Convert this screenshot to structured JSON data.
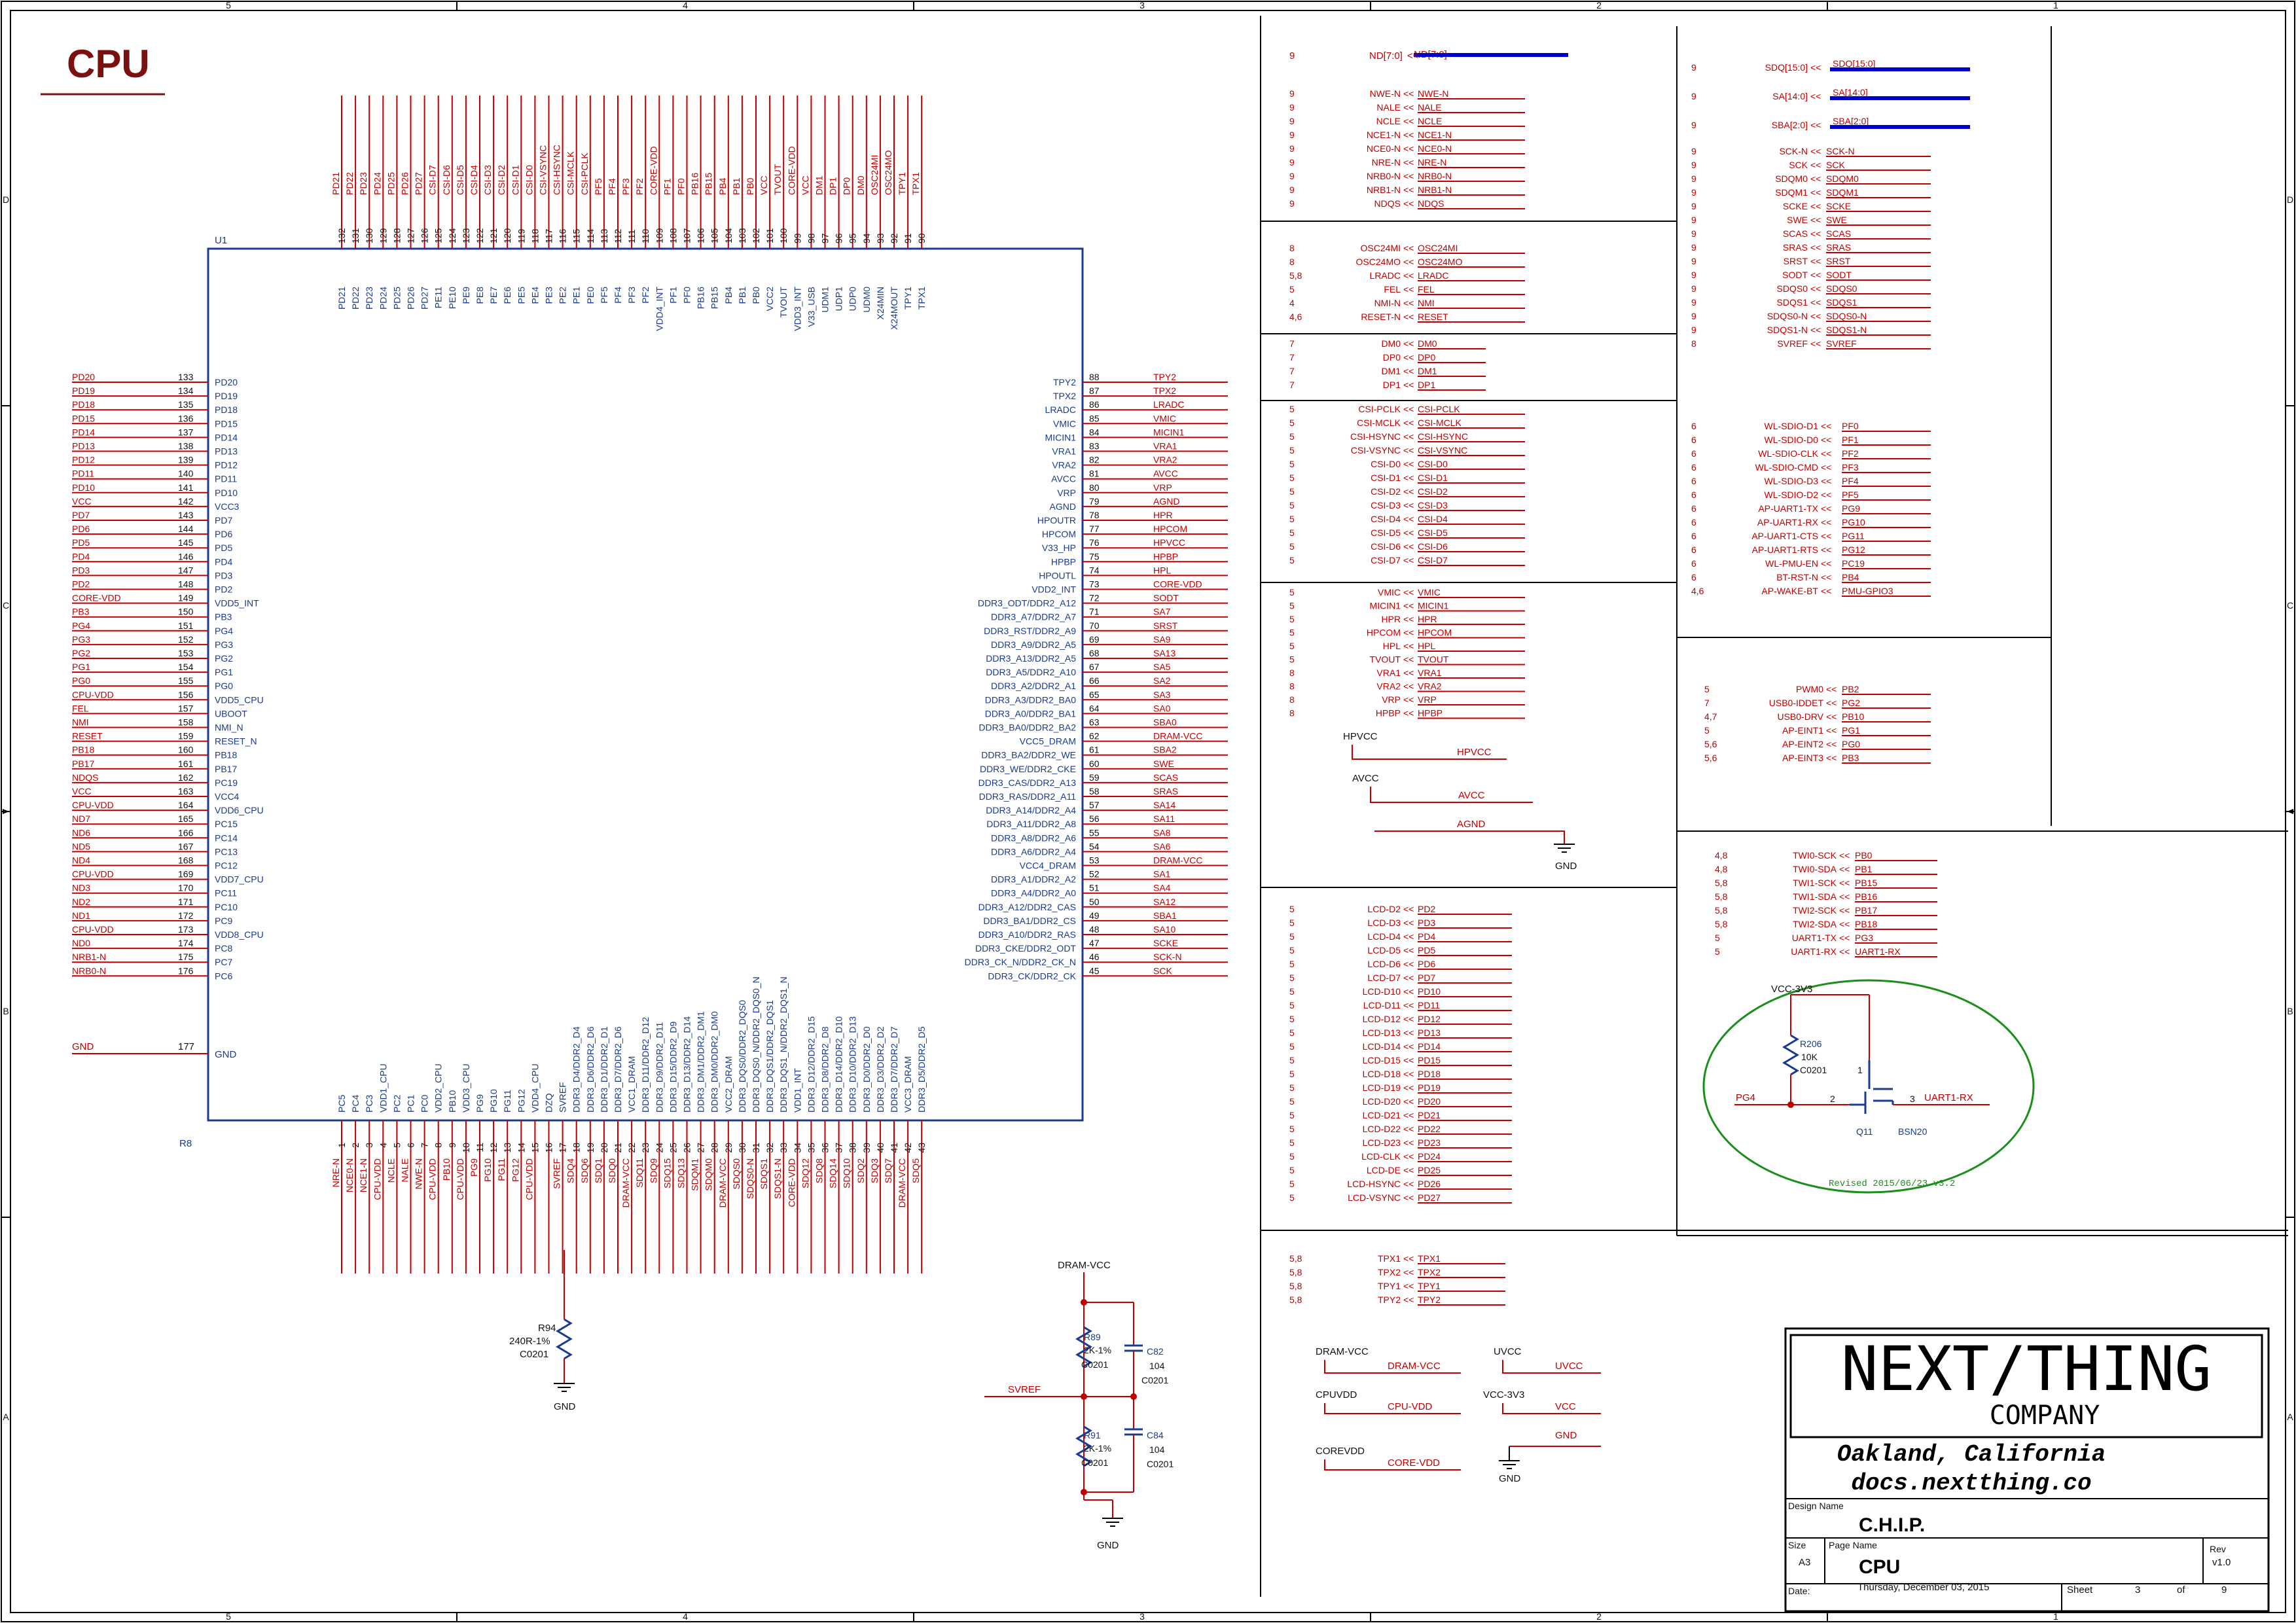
{
  "page_title": "CPU",
  "chip": {
    "ref": "U1",
    "left_labels": [
      "PD20",
      "PD19",
      "PD18",
      "PD15",
      "PD14",
      "PD13",
      "PD12",
      "PD11",
      "PD10",
      "VCC3",
      "PD7",
      "PD6",
      "PD5",
      "PD4",
      "PD3",
      "PD2",
      "VDD5_INT",
      "PB3",
      "PG4",
      "PG3",
      "PG2",
      "PG1",
      "PG0",
      "VDD5_CPU",
      "UBOOT",
      "NMI_N",
      "RESET_N",
      "PB18",
      "PB17",
      "PC19",
      "VCC4",
      "VDD6_CPU",
      "PC15",
      "PC14",
      "PC13",
      "PC12",
      "VDD7_CPU",
      "PC11",
      "PC10",
      "PC9",
      "VDD8_CPU",
      "PC8",
      "PC7",
      "PC6"
    ],
    "left_pins": [
      "133",
      "134",
      "135",
      "136",
      "137",
      "138",
      "139",
      "140",
      "141",
      "142",
      "143",
      "144",
      "145",
      "146",
      "147",
      "148",
      "149",
      "150",
      "151",
      "152",
      "153",
      "154",
      "155",
      "156",
      "157",
      "158",
      "159",
      "160",
      "161",
      "162",
      "163",
      "164",
      "165",
      "166",
      "167",
      "168",
      "169",
      "170",
      "171",
      "172",
      "173",
      "174",
      "175",
      "176"
    ],
    "left_nets": [
      "PD20",
      "PD19",
      "PD18",
      "PD15",
      "PD14",
      "PD13",
      "PD12",
      "PD11",
      "PD10",
      "VCC",
      "PD7",
      "PD6",
      "PD5",
      "PD4",
      "PD3",
      "PD2",
      "CORE-VDD",
      "PB3",
      "PG4",
      "PG3",
      "PG2",
      "PG1",
      "PG0",
      "CPU-VDD",
      "FEL",
      "NMI",
      "RESET",
      "PB18",
      "PB17",
      "NDQS",
      "VCC",
      "CPU-VDD",
      "ND7",
      "ND6",
      "ND5",
      "ND4",
      "CPU-VDD",
      "ND3",
      "ND2",
      "ND1",
      "CPU-VDD",
      "ND0",
      "NRB1-N",
      "NRB0-N"
    ],
    "gnd_label": "GND",
    "gnd_pin": "177",
    "gnd_net": "GND",
    "right_labels": [
      "TPY2",
      "TPX2",
      "LRADC",
      "VMIC",
      "MICIN1",
      "VRA1",
      "VRA2",
      "AVCC",
      "VRP",
      "AGND",
      "HPOUTR",
      "HPCOM",
      "V33_HP",
      "HPBP",
      "HPOUTL",
      "VDD2_INT",
      "DDR3_ODT/DDR2_A12",
      "DDR3_A7/DDR2_A7",
      "DDR3_RST/DDR2_A9",
      "DDR3_A9/DDR2_A5",
      "DDR3_A13/DDR2_A5",
      "DDR3_A5/DDR2_A10",
      "DDR3_A2/DDR2_A1",
      "DDR3_A3/DDR2_BA0",
      "DDR3_A0/DDR2_BA1",
      "DDR3_BA0/DDR2_BA2",
      "VCC5_DRAM",
      "DDR3_BA2/DDR2_WE",
      "DDR3_WE/DDR2_CKE",
      "DDR3_CAS/DDR2_A13",
      "DDR3_RAS/DDR2_A11",
      "DDR3_A14/DDR2_A4",
      "DDR3_A11/DDR2_A8",
      "DDR3_A8/DDR2_A6",
      "DDR3_A6/DDR2_A4",
      "VCC4_DRAM",
      "DDR3_A1/DDR2_A2",
      "DDR3_A4/DDR2_A0",
      "DDR3_A12/DDR2_CAS",
      "DDR3_BA1/DDR2_CS",
      "DDR3_A10/DDR2_RAS",
      "DDR3_CKE/DDR2_ODT",
      "DDR3_CK_N/DDR2_CK_N",
      "DDR3_CK/DDR2_CK"
    ],
    "right_pins": [
      "88",
      "87",
      "86",
      "85",
      "84",
      "83",
      "82",
      "81",
      "80",
      "79",
      "78",
      "77",
      "76",
      "75",
      "74",
      "73",
      "72",
      "71",
      "70",
      "69",
      "68",
      "67",
      "66",
      "65",
      "64",
      "63",
      "62",
      "61",
      "60",
      "59",
      "58",
      "57",
      "56",
      "55",
      "54",
      "53",
      "52",
      "51",
      "50",
      "49",
      "48",
      "47",
      "46",
      "45"
    ],
    "right_nets": [
      "TPY2",
      "TPX2",
      "LRADC",
      "VMIC",
      "MICIN1",
      "VRA1",
      "VRA2",
      "AVCC",
      "VRP",
      "AGND",
      "HPR",
      "HPCOM",
      "HPVCC",
      "HPBP",
      "HPL",
      "CORE-VDD",
      "SODT",
      "SA7",
      "SRST",
      "SA9",
      "SA13",
      "SA5",
      "SA2",
      "SA3",
      "SA0",
      "SBA0",
      "DRAM-VCC",
      "SBA2",
      "SWE",
      "SCAS",
      "SRAS",
      "SA14",
      "SA11",
      "SA8",
      "SA6",
      "DRAM-VCC",
      "SA1",
      "SA4",
      "SA12",
      "SBA1",
      "SA10",
      "SCKE",
      "SCK-N",
      "SCK"
    ],
    "top_labels": [
      "PD21",
      "PD22",
      "PD23",
      "PD24",
      "PD25",
      "PD26",
      "PD27",
      "PE11",
      "PE10",
      "PE9",
      "PE8",
      "PE7",
      "PE6",
      "PE5",
      "PE4",
      "PE3",
      "PE2",
      "PE1",
      "PE0",
      "PF5",
      "PF4",
      "PF3",
      "PF2",
      "VDD4_INT",
      "PF1",
      "PF0",
      "PB16",
      "PB15",
      "PB4",
      "PB1",
      "PB0",
      "VCC2",
      "TVOUT",
      "VDD3_INT",
      "V33_USB",
      "UDM1",
      "UDP1",
      "UDP0",
      "UDM0",
      "X24MIN",
      "X24MOUT",
      "TPY1",
      "TPX1"
    ],
    "top_pins": [
      "132",
      "131",
      "130",
      "129",
      "128",
      "127",
      "126",
      "125",
      "124",
      "123",
      "122",
      "121",
      "120",
      "119",
      "118",
      "117",
      "116",
      "115",
      "114",
      "113",
      "112",
      "111",
      "110",
      "109",
      "108",
      "107",
      "106",
      "105",
      "104",
      "103",
      "102",
      "101",
      "100",
      "99",
      "98",
      "97",
      "96",
      "95",
      "94",
      "93",
      "92",
      "91",
      "90",
      "89"
    ],
    "top_nets": [
      "PD21",
      "PD22",
      "PD23",
      "PD24",
      "PD25",
      "PD26",
      "PD27",
      "CSI-D7",
      "CSI-D6",
      "CSI-D5",
      "CSI-D4",
      "CSI-D3",
      "CSI-D2",
      "CSI-D1",
      "CSI-D0",
      "CSI-VSYNC",
      "CSI-HSYNC",
      "CSI-MCLK",
      "CSI-PCLK",
      "PF5",
      "PF4",
      "PF3",
      "PF2",
      "CORE-VDD",
      "PF1",
      "PF0",
      "PB16",
      "PB15",
      "PB4",
      "PB1",
      "PB0",
      "VCC",
      "TVOUT",
      "CORE-VDD",
      "VCC",
      "DM1",
      "DP1",
      "DP0",
      "DM0",
      "OSC24MI",
      "OSC24MO",
      "TPY1",
      "TPX1"
    ],
    "bottom_labels": [
      "PC5",
      "PC4",
      "PC3",
      "VDD1_CPU",
      "PC2",
      "PC1",
      "PC0",
      "VDD2_CPU",
      "PB10",
      "VDD3_CPU",
      "PG9",
      "PG10",
      "PG11",
      "PG12",
      "VDD4_CPU",
      "DZQ",
      "SVREF",
      "DDR3_D4/DDR2_D4",
      "DDR3_D6/DDR2_D6",
      "DDR3_D1/DDR2_D1",
      "DDR3_D7/DDR2_D6",
      "VCC1_DRAM",
      "DDR3_D11/DDR2_D12",
      "DDR3_D9/DDR2_D11",
      "DDR3_D15/DDR2_D9",
      "DDR3_D13/DDR2_D14",
      "DDR3_DM1/DDR2_DM1",
      "DDR3_DM0/DDR2_DM0",
      "VCC2_DRAM",
      "DDR3_DQS0/DDR2_DQS0",
      "DDR3_DQS0_N/DDR2_DQS0_N",
      "DDR3_DQS1/DDR2_DQS1",
      "DDR3_DQS1_N/DDR2_DQS1_N",
      "VDD1_INT",
      "DDR3_D12/DDR2_D15",
      "DDR3_D8/DDR2_D8",
      "DDR3_D14/DDR2_D10",
      "DDR3_D10/DDR2_D13",
      "DDR3_D0/DDR2_D0",
      "DDR3_D3/DDR2_D2",
      "DDR3_D7/DDR2_D7",
      "VCC3_DRAM",
      "DDR3_D5/DDR2_D5"
    ],
    "bottom_pins": [
      "1",
      "2",
      "3",
      "4",
      "5",
      "6",
      "7",
      "8",
      "9",
      "10",
      "11",
      "12",
      "13",
      "14",
      "15",
      "16",
      "17",
      "18",
      "19",
      "20",
      "21",
      "22",
      "23",
      "24",
      "25",
      "26",
      "27",
      "28",
      "29",
      "30",
      "31",
      "32",
      "33",
      "34",
      "35",
      "36",
      "37",
      "38",
      "39",
      "40",
      "41",
      "42",
      "43",
      "44"
    ],
    "bottom_nets": [
      "NRE-N",
      "NCE0-N",
      "NCE1-N",
      "CPU-VDD",
      "NCLE",
      "NALE",
      "NWE-N",
      "CPU-VDD",
      "PB10",
      "CPU-VDD",
      "PG9",
      "PG10",
      "PG11",
      "PG12",
      "CPU-VDD",
      "",
      "SVREF",
      "SDQ4",
      "SDQ6",
      "SDQ1",
      "SDQ0",
      "DRAM-VCC",
      "SDQ11",
      "SDQ9",
      "SDQ15",
      "SDQ13",
      "SDQM1",
      "SDQM0",
      "DRAM-VCC",
      "SDQS0",
      "SDQS0-N",
      "SDQS1",
      "SDQS1-N",
      "CORE-VDD",
      "SDQ12",
      "SDQ8",
      "SDQ14",
      "SDQ10",
      "SDQ2",
      "SDQ3",
      "SDQ7",
      "DRAM-VCC",
      "SDQ5"
    ],
    "r8_label": "R8"
  },
  "r94": {
    "ref": "R94",
    "value": "240R-1%",
    "pkg": "C0201",
    "gnd": "GND"
  },
  "svref_circuit": {
    "title": "DRAM-VCC",
    "net": "SVREF",
    "r89": {
      "ref": "R89",
      "value": "2K-1%",
      "pkg": "C0201"
    },
    "r91": {
      "ref": "R91",
      "value": "2K-1%",
      "pkg": "C0201"
    },
    "c82": {
      "ref": "C82",
      "value": "104",
      "pkg": "C0201"
    },
    "c84": {
      "ref": "C84",
      "value": "104",
      "pkg": "C0201"
    },
    "gnd": "GND"
  },
  "nand": {
    "bus": {
      "sheet": "9",
      "pin": "ND[7:0]",
      "net": "ND[7:0]"
    },
    "rows": [
      [
        "9",
        "NWE-N",
        "NWE-N"
      ],
      [
        "9",
        "NALE",
        "NALE"
      ],
      [
        "9",
        "NCLE",
        "NCLE"
      ],
      [
        "9",
        "NCE1-N",
        "NCE1-N"
      ],
      [
        "9",
        "NCE0-N",
        "NCE0-N"
      ],
      [
        "9",
        "NRE-N",
        "NRE-N"
      ],
      [
        "9",
        "NRB0-N",
        "NRB0-N"
      ],
      [
        "9",
        "NRB1-N",
        "NRB1-N"
      ],
      [
        "9",
        "NDQS",
        "NDQS"
      ]
    ]
  },
  "osc": {
    "rows": [
      [
        "8",
        "OSC24MI",
        "OSC24MI"
      ],
      [
        "8",
        "OSC24MO",
        "OSC24MO"
      ],
      [
        "5,8",
        "LRADC",
        "LRADC"
      ],
      [
        "5",
        "FEL",
        "FEL"
      ],
      [
        "4",
        "NMI-N",
        "NMI"
      ],
      [
        "4,6",
        "RESET-N",
        "RESET"
      ]
    ]
  },
  "usb": {
    "rows": [
      [
        "7",
        "DM0",
        "DM0"
      ],
      [
        "7",
        "DP0",
        "DP0"
      ],
      [
        "7",
        "DM1",
        "DM1"
      ],
      [
        "7",
        "DP1",
        "DP1"
      ]
    ]
  },
  "csi": {
    "rows": [
      [
        "5",
        "CSI-PCLK",
        "CSI-PCLK"
      ],
      [
        "5",
        "CSI-MCLK",
        "CSI-MCLK"
      ],
      [
        "5",
        "CSI-HSYNC",
        "CSI-HSYNC"
      ],
      [
        "5",
        "CSI-VSYNC",
        "CSI-VSYNC"
      ],
      [
        "5",
        "CSI-D0",
        "CSI-D0"
      ],
      [
        "5",
        "CSI-D1",
        "CSI-D1"
      ],
      [
        "5",
        "CSI-D2",
        "CSI-D2"
      ],
      [
        "5",
        "CSI-D3",
        "CSI-D3"
      ],
      [
        "5",
        "CSI-D4",
        "CSI-D4"
      ],
      [
        "5",
        "CSI-D5",
        "CSI-D5"
      ],
      [
        "5",
        "CSI-D6",
        "CSI-D6"
      ],
      [
        "5",
        "CSI-D7",
        "CSI-D7"
      ]
    ]
  },
  "audio": {
    "rows": [
      [
        "5",
        "VMIC",
        "VMIC"
      ],
      [
        "5",
        "MICIN1",
        "MICIN1"
      ],
      [
        "5",
        "HPR",
        "HPR"
      ],
      [
        "5",
        "HPCOM",
        "HPCOM"
      ],
      [
        "5",
        "HPL",
        "HPL"
      ],
      [
        "5",
        "TVOUT",
        "TVOUT"
      ],
      [
        "8",
        "VRA1",
        "VRA1"
      ],
      [
        "8",
        "VRA2",
        "VRA2"
      ],
      [
        "8",
        "VRP",
        "VRP"
      ],
      [
        "8",
        "HPBP",
        "HPBP"
      ]
    ],
    "hpvcc_label": "HPVCC",
    "hpvcc_net": "HPVCC",
    "avcc_label": "AVCC",
    "avcc_net": "AVCC",
    "agnd_net": "AGND",
    "gnd": "GND"
  },
  "lcd": {
    "rows": [
      [
        "5",
        "LCD-D2",
        "PD2"
      ],
      [
        "5",
        "LCD-D3",
        "PD3"
      ],
      [
        "5",
        "LCD-D4",
        "PD4"
      ],
      [
        "5",
        "LCD-D5",
        "PD5"
      ],
      [
        "5",
        "LCD-D6",
        "PD6"
      ],
      [
        "5",
        "LCD-D7",
        "PD7"
      ],
      [
        "5",
        "LCD-D10",
        "PD10"
      ],
      [
        "5",
        "LCD-D11",
        "PD11"
      ],
      [
        "5",
        "LCD-D12",
        "PD12"
      ],
      [
        "5",
        "LCD-D13",
        "PD13"
      ],
      [
        "5",
        "LCD-D14",
        "PD14"
      ],
      [
        "5",
        "LCD-D15",
        "PD15"
      ],
      [
        "5",
        "LCD-D18",
        "PD18"
      ],
      [
        "5",
        "LCD-D19",
        "PD19"
      ],
      [
        "5",
        "LCD-D20",
        "PD20"
      ],
      [
        "5",
        "LCD-D21",
        "PD21"
      ],
      [
        "5",
        "LCD-D22",
        "PD22"
      ],
      [
        "5",
        "LCD-D23",
        "PD23"
      ],
      [
        "5",
        "LCD-CLK",
        "PD24"
      ],
      [
        "5",
        "LCD-DE",
        "PD25"
      ],
      [
        "5",
        "LCD-HSYNC",
        "PD26"
      ],
      [
        "5",
        "LCD-VSYNC",
        "PD27"
      ]
    ]
  },
  "touch": {
    "rows": [
      [
        "5,8",
        "TPX1",
        "TPX1"
      ],
      [
        "5,8",
        "TPX2",
        "TPX2"
      ],
      [
        "5,8",
        "TPY1",
        "TPY1"
      ],
      [
        "5,8",
        "TPY2",
        "TPY2"
      ]
    ]
  },
  "power": {
    "dram_label": "DRAM-VCC",
    "dram_net": "DRAM-VCC",
    "cpu_label": "CPUVDD",
    "cpu_net": "CPU-VDD",
    "core_label": "COREVDD",
    "core_net": "CORE-VDD",
    "uvcc_label": "UVCC",
    "uvcc_net": "UVCC",
    "vcc_label": "VCC-3V3",
    "vcc_net": "VCC",
    "gnd_net": "GND",
    "gnd": "GND"
  },
  "sdram": {
    "buses": [
      [
        "9",
        "SDQ[15:0]",
        "SDQ[15:0]"
      ],
      [
        "9",
        "SA[14:0]",
        "SA[14:0]"
      ],
      [
        "9",
        "SBA[2:0]",
        "SBA[2:0]"
      ]
    ],
    "rows": [
      [
        "9",
        "SCK-N",
        "SCK-N"
      ],
      [
        "9",
        "SCK",
        "SCK"
      ],
      [
        "9",
        "SDQM0",
        "SDQM0"
      ],
      [
        "9",
        "SDQM1",
        "SDQM1"
      ],
      [
        "9",
        "SCKE",
        "SCKE"
      ],
      [
        "9",
        "SWE",
        "SWE"
      ],
      [
        "9",
        "SCAS",
        "SCAS"
      ],
      [
        "9",
        "SRAS",
        "SRAS"
      ],
      [
        "9",
        "SRST",
        "SRST"
      ],
      [
        "9",
        "SODT",
        "SODT"
      ],
      [
        "9",
        "SDQS0",
        "SDQS0"
      ],
      [
        "9",
        "SDQS1",
        "SDQS1"
      ],
      [
        "9",
        "SDQS0-N",
        "SDQS0-N"
      ],
      [
        "9",
        "SDQS1-N",
        "SDQS1-N"
      ],
      [
        "8",
        "SVREF",
        "SVREF"
      ]
    ]
  },
  "wifi": {
    "rows": [
      [
        "6",
        "WL-SDIO-D1",
        "PF0"
      ],
      [
        "6",
        "WL-SDIO-D0",
        "PF1"
      ],
      [
        "6",
        "WL-SDIO-CLK",
        "PF2"
      ],
      [
        "6",
        "WL-SDIO-CMD",
        "PF3"
      ],
      [
        "6",
        "WL-SDIO-D3",
        "PF4"
      ],
      [
        "6",
        "WL-SDIO-D2",
        "PF5"
      ],
      [
        "6",
        "AP-UART1-TX",
        "PG9"
      ],
      [
        "6",
        "AP-UART1-RX",
        "PG10"
      ],
      [
        "6",
        "AP-UART1-CTS",
        "PG11"
      ],
      [
        "6",
        "AP-UART1-RTS",
        "PG12"
      ],
      [
        "6",
        "WL-PMU-EN",
        "PC19"
      ],
      [
        "6",
        "BT-RST-N",
        "PB4"
      ],
      [
        "4,6",
        "AP-WAKE-BT",
        "PMU-GPIO3"
      ]
    ]
  },
  "misc": {
    "rows": [
      [
        "5",
        "PWM0",
        "PB2"
      ],
      [
        "7",
        "USB0-IDDET",
        "PG2"
      ],
      [
        "4,7",
        "USB0-DRV",
        "PB10"
      ],
      [
        "5",
        "AP-EINT1",
        "PG1"
      ],
      [
        "5,6",
        "AP-EINT2",
        "PG0"
      ],
      [
        "5,6",
        "AP-EINT3",
        "PB3"
      ]
    ]
  },
  "i2c": {
    "rows": [
      [
        "4,8",
        "TWI0-SCK",
        "PB0"
      ],
      [
        "4,8",
        "TWI0-SDA",
        "PB1"
      ],
      [
        "5,8",
        "TWI1-SCK",
        "PB15"
      ],
      [
        "5,8",
        "TWI1-SDA",
        "PB16"
      ],
      [
        "5,8",
        "TWI2-SCK",
        "PB17"
      ],
      [
        "5,8",
        "TWI2-SDA",
        "PB18"
      ],
      [
        "5",
        "UART1-TX",
        "PG3"
      ],
      [
        "5",
        "UART1-RX",
        "UART1-RX"
      ]
    ]
  },
  "level_shift": {
    "vcc": "VCC-3V3",
    "r_ref": "R206",
    "r_val": "10K",
    "r_pkg": "C0201",
    "in_net": "PG4",
    "out_net": "UART1-RX",
    "q_ref": "Q11",
    "q_part": "BSN20",
    "pin1": "1",
    "pin2": "2",
    "pin3": "3",
    "revised": "Revised 2015/06/23 v3.2"
  },
  "title_block": {
    "logo_top": "NEXT/THING",
    "logo_bottom": "COMPANY",
    "city": "Oakland, California",
    "url": "docs.nextthing.co",
    "design_name_label": "Design Name",
    "design_name": "C.H.I.P.",
    "size_label": "Size",
    "size": "A3",
    "page_name_label": "Page Name",
    "page_name": "CPU",
    "rev_label": "Rev",
    "rev": "v1.0",
    "date_label": "Date:",
    "date": "Thursday, December 03, 2015",
    "sheet_label": "Sheet",
    "sheet": "3",
    "of_label": "of",
    "sheet_total": "9"
  },
  "border": {
    "cols": [
      "5",
      "4",
      "3",
      "2",
      "1"
    ],
    "rows": [
      "D",
      "C",
      "B",
      "A"
    ]
  },
  "colors": {
    "wire": "#c00000",
    "text": "#1a3a8f",
    "bus": "#0000cc",
    "ellipse": "#1a8f1a",
    "border": "#000000"
  }
}
